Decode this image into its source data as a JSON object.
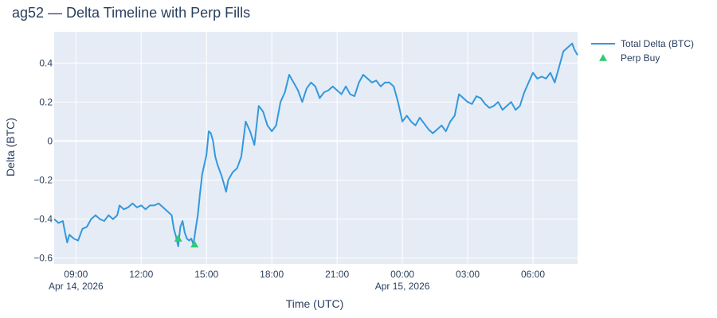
{
  "chart_data": {
    "type": "line",
    "title": "ag52 — Delta Timeline with Perp Fills",
    "xlabel": "Time (UTC)",
    "ylabel": "Delta (BTC)",
    "x_unit": "hours since 2026-04-14 00:00 UTC",
    "xlim": [
      8.0,
      32.05
    ],
    "ylim": [
      -0.63,
      0.56
    ],
    "x_ticks": [
      {
        "x": 9,
        "label": "09:00",
        "date": "Apr 14, 2026"
      },
      {
        "x": 12,
        "label": "12:00",
        "date": ""
      },
      {
        "x": 15,
        "label": "15:00",
        "date": ""
      },
      {
        "x": 18,
        "label": "18:00",
        "date": ""
      },
      {
        "x": 21,
        "label": "21:00",
        "date": ""
      },
      {
        "x": 24,
        "label": "00:00",
        "date": "Apr 15, 2026"
      },
      {
        "x": 27,
        "label": "03:00",
        "date": ""
      },
      {
        "x": 30,
        "label": "06:00",
        "date": ""
      }
    ],
    "y_ticks": [
      {
        "y": 0.4,
        "label": "0.4"
      },
      {
        "y": 0.2,
        "label": "0.2"
      },
      {
        "y": 0,
        "label": "0"
      },
      {
        "y": -0.2,
        "label": "−0.2"
      },
      {
        "y": -0.4,
        "label": "−0.4"
      },
      {
        "y": -0.6,
        "label": "−0.6"
      }
    ],
    "grid": true,
    "legend_position": "top-right",
    "series": [
      {
        "name": "Total Delta (BTC)",
        "style": "line",
        "color": "#3498db",
        "points": [
          [
            8.0,
            -0.4
          ],
          [
            8.2,
            -0.42
          ],
          [
            8.4,
            -0.41
          ],
          [
            8.5,
            -0.47
          ],
          [
            8.6,
            -0.52
          ],
          [
            8.7,
            -0.48
          ],
          [
            8.9,
            -0.5
          ],
          [
            9.1,
            -0.51
          ],
          [
            9.3,
            -0.45
          ],
          [
            9.5,
            -0.44
          ],
          [
            9.7,
            -0.4
          ],
          [
            9.9,
            -0.38
          ],
          [
            10.1,
            -0.4
          ],
          [
            10.3,
            -0.41
          ],
          [
            10.5,
            -0.38
          ],
          [
            10.7,
            -0.4
          ],
          [
            10.9,
            -0.38
          ],
          [
            11.0,
            -0.33
          ],
          [
            11.2,
            -0.35
          ],
          [
            11.4,
            -0.34
          ],
          [
            11.6,
            -0.32
          ],
          [
            11.8,
            -0.34
          ],
          [
            12.0,
            -0.33
          ],
          [
            12.2,
            -0.35
          ],
          [
            12.4,
            -0.33
          ],
          [
            12.6,
            -0.33
          ],
          [
            12.8,
            -0.32
          ],
          [
            13.0,
            -0.34
          ],
          [
            13.2,
            -0.36
          ],
          [
            13.4,
            -0.38
          ],
          [
            13.5,
            -0.45
          ],
          [
            13.6,
            -0.49
          ],
          [
            13.7,
            -0.54
          ],
          [
            13.8,
            -0.44
          ],
          [
            13.9,
            -0.41
          ],
          [
            14.0,
            -0.47
          ],
          [
            14.1,
            -0.5
          ],
          [
            14.2,
            -0.51
          ],
          [
            14.3,
            -0.5
          ],
          [
            14.4,
            -0.53
          ],
          [
            14.5,
            -0.45
          ],
          [
            14.6,
            -0.38
          ],
          [
            14.7,
            -0.27
          ],
          [
            14.8,
            -0.17
          ],
          [
            14.9,
            -0.12
          ],
          [
            15.0,
            -0.07
          ],
          [
            15.1,
            0.05
          ],
          [
            15.2,
            0.04
          ],
          [
            15.3,
            0.0
          ],
          [
            15.4,
            -0.08
          ],
          [
            15.5,
            -0.12
          ],
          [
            15.6,
            -0.15
          ],
          [
            15.7,
            -0.18
          ],
          [
            15.8,
            -0.22
          ],
          [
            15.9,
            -0.26
          ],
          [
            16.0,
            -0.2
          ],
          [
            16.2,
            -0.16
          ],
          [
            16.4,
            -0.14
          ],
          [
            16.6,
            -0.08
          ],
          [
            16.8,
            0.1
          ],
          [
            17.0,
            0.05
          ],
          [
            17.2,
            -0.02
          ],
          [
            17.4,
            0.18
          ],
          [
            17.6,
            0.15
          ],
          [
            17.8,
            0.08
          ],
          [
            18.0,
            0.05
          ],
          [
            18.2,
            0.08
          ],
          [
            18.4,
            0.2
          ],
          [
            18.6,
            0.25
          ],
          [
            18.8,
            0.34
          ],
          [
            19.0,
            0.3
          ],
          [
            19.2,
            0.26
          ],
          [
            19.4,
            0.2
          ],
          [
            19.6,
            0.27
          ],
          [
            19.8,
            0.3
          ],
          [
            20.0,
            0.28
          ],
          [
            20.2,
            0.22
          ],
          [
            20.4,
            0.25
          ],
          [
            20.6,
            0.26
          ],
          [
            20.8,
            0.28
          ],
          [
            21.0,
            0.26
          ],
          [
            21.2,
            0.24
          ],
          [
            21.4,
            0.28
          ],
          [
            21.6,
            0.24
          ],
          [
            21.8,
            0.23
          ],
          [
            22.0,
            0.3
          ],
          [
            22.2,
            0.34
          ],
          [
            22.4,
            0.32
          ],
          [
            22.6,
            0.3
          ],
          [
            22.8,
            0.31
          ],
          [
            23.0,
            0.28
          ],
          [
            23.2,
            0.3
          ],
          [
            23.4,
            0.3
          ],
          [
            23.6,
            0.28
          ],
          [
            23.8,
            0.2
          ],
          [
            24.0,
            0.1
          ],
          [
            24.2,
            0.13
          ],
          [
            24.4,
            0.1
          ],
          [
            24.6,
            0.08
          ],
          [
            24.8,
            0.12
          ],
          [
            25.0,
            0.09
          ],
          [
            25.2,
            0.06
          ],
          [
            25.4,
            0.04
          ],
          [
            25.6,
            0.06
          ],
          [
            25.8,
            0.08
          ],
          [
            26.0,
            0.05
          ],
          [
            26.2,
            0.1
          ],
          [
            26.4,
            0.13
          ],
          [
            26.6,
            0.24
          ],
          [
            26.8,
            0.22
          ],
          [
            27.0,
            0.2
          ],
          [
            27.2,
            0.19
          ],
          [
            27.4,
            0.23
          ],
          [
            27.6,
            0.22
          ],
          [
            27.8,
            0.19
          ],
          [
            28.0,
            0.17
          ],
          [
            28.2,
            0.18
          ],
          [
            28.4,
            0.2
          ],
          [
            28.6,
            0.16
          ],
          [
            28.8,
            0.18
          ],
          [
            29.0,
            0.2
          ],
          [
            29.2,
            0.16
          ],
          [
            29.4,
            0.18
          ],
          [
            29.6,
            0.25
          ],
          [
            29.8,
            0.3
          ],
          [
            30.0,
            0.35
          ],
          [
            30.2,
            0.32
          ],
          [
            30.4,
            0.33
          ],
          [
            30.6,
            0.32
          ],
          [
            30.8,
            0.35
          ],
          [
            31.0,
            0.3
          ],
          [
            31.2,
            0.38
          ],
          [
            31.4,
            0.46
          ],
          [
            31.6,
            0.48
          ],
          [
            31.8,
            0.5
          ],
          [
            31.9,
            0.47
          ],
          [
            32.05,
            0.44
          ]
        ]
      },
      {
        "name": "Perp Buy",
        "style": "marker-triangle-up",
        "color": "#2ecc71",
        "points": [
          [
            13.7,
            -0.5
          ],
          [
            14.45,
            -0.53
          ]
        ]
      }
    ]
  }
}
